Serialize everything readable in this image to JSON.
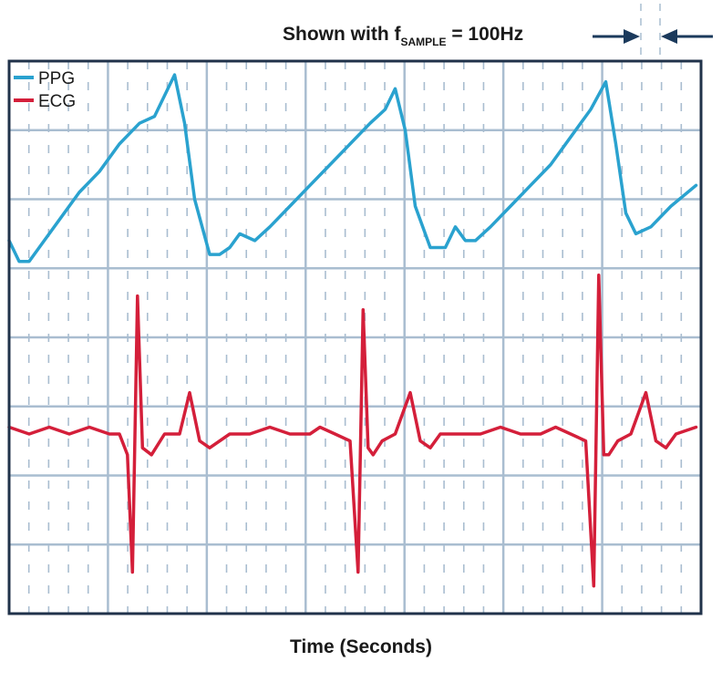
{
  "annotation": {
    "prefix": "Shown with f",
    "subscript": "SAMPLE",
    "suffix": " = 100Hz"
  },
  "colors": {
    "ppg": "#2aa2cf",
    "ecg": "#d41f3a",
    "grid": "#a9bdd0",
    "frame": "#20324a",
    "arrow": "#1b3a5c"
  },
  "chart_data": {
    "type": "line",
    "title": "",
    "xlabel": "Time (Seconds)",
    "ylabel": "",
    "xlim": [
      0,
      6.9
    ],
    "ylim": [
      0,
      8
    ],
    "grid": true,
    "legend_placement": "top-left",
    "sample_rate_hz": 100,
    "series": [
      {
        "name": "PPG",
        "x": [
          0,
          0.1,
          0.2,
          0.3,
          0.5,
          0.7,
          0.9,
          1.1,
          1.3,
          1.45,
          1.55,
          1.65,
          1.75,
          1.85,
          2.0,
          2.1,
          2.2,
          2.3,
          2.45,
          2.6,
          2.8,
          3.0,
          3.2,
          3.4,
          3.6,
          3.75,
          3.85,
          3.95,
          4.05,
          4.2,
          4.35,
          4.45,
          4.55,
          4.65,
          4.8,
          5.0,
          5.2,
          5.4,
          5.6,
          5.8,
          5.95,
          6.05,
          6.15,
          6.25,
          6.4,
          6.6,
          6.85
        ],
        "y": [
          5.4,
          5.1,
          5.1,
          5.3,
          5.7,
          6.1,
          6.4,
          6.8,
          7.1,
          7.2,
          7.5,
          7.8,
          7.1,
          6.0,
          5.2,
          5.2,
          5.3,
          5.5,
          5.4,
          5.6,
          5.9,
          6.2,
          6.5,
          6.8,
          7.1,
          7.3,
          7.6,
          7.0,
          5.9,
          5.3,
          5.3,
          5.6,
          5.4,
          5.4,
          5.6,
          5.9,
          6.2,
          6.5,
          6.9,
          7.3,
          7.7,
          6.8,
          5.8,
          5.5,
          5.6,
          5.9,
          6.2
        ]
      },
      {
        "name": "ECG",
        "x": [
          0,
          0.2,
          0.4,
          0.6,
          0.8,
          1.0,
          1.1,
          1.18,
          1.23,
          1.28,
          1.33,
          1.42,
          1.55,
          1.7,
          1.8,
          1.9,
          2.0,
          2.2,
          2.4,
          2.6,
          2.8,
          3.0,
          3.1,
          3.25,
          3.4,
          3.48,
          3.53,
          3.58,
          3.63,
          3.72,
          3.85,
          4.0,
          4.1,
          4.2,
          4.3,
          4.5,
          4.7,
          4.9,
          5.1,
          5.3,
          5.45,
          5.6,
          5.75,
          5.83,
          5.88,
          5.93,
          5.98,
          6.07,
          6.2,
          6.35,
          6.45,
          6.55,
          6.65,
          6.85
        ],
        "y": [
          2.7,
          2.6,
          2.7,
          2.6,
          2.7,
          2.6,
          2.6,
          2.3,
          0.6,
          4.6,
          2.4,
          2.3,
          2.6,
          2.6,
          3.2,
          2.5,
          2.4,
          2.6,
          2.6,
          2.7,
          2.6,
          2.6,
          2.7,
          2.6,
          2.5,
          0.6,
          4.4,
          2.4,
          2.3,
          2.5,
          2.6,
          3.2,
          2.5,
          2.4,
          2.6,
          2.6,
          2.6,
          2.7,
          2.6,
          2.6,
          2.7,
          2.6,
          2.5,
          0.4,
          4.9,
          2.3,
          2.3,
          2.5,
          2.6,
          3.2,
          2.5,
          2.4,
          2.6,
          2.7
        ]
      }
    ]
  }
}
